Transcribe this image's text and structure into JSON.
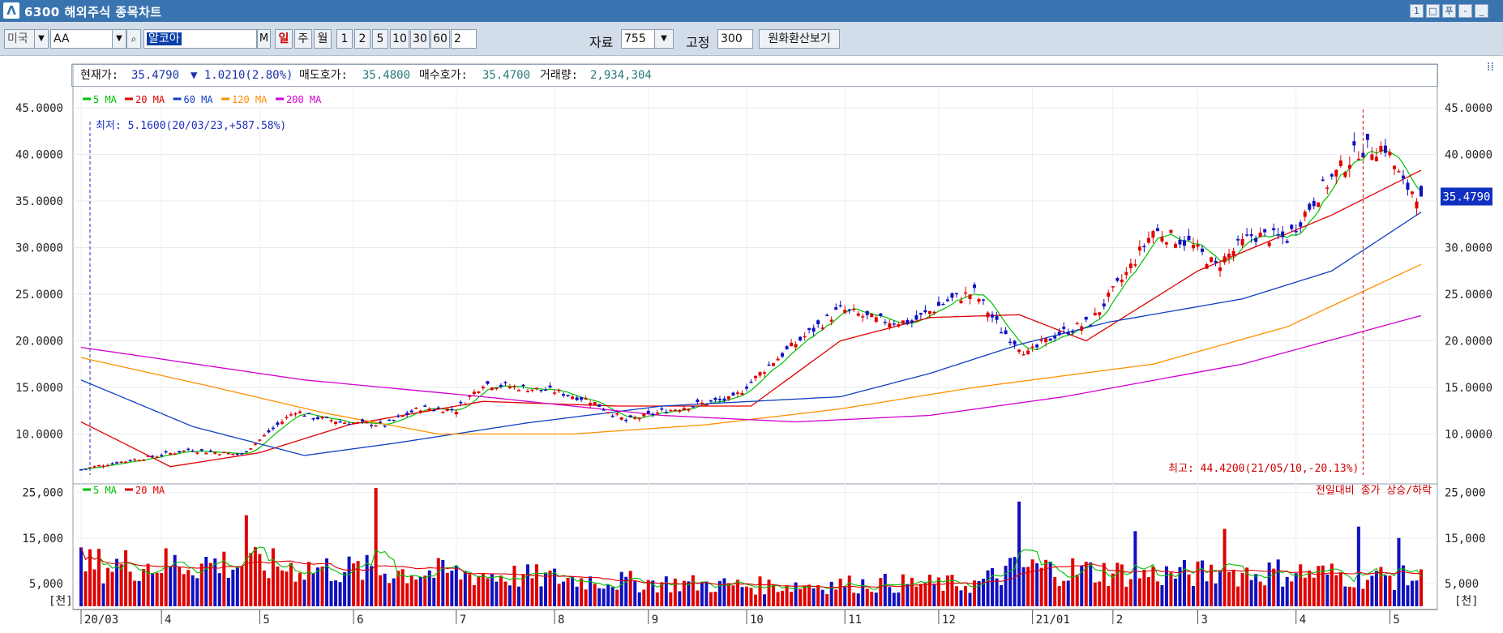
{
  "window": {
    "title": "6300 해외주식 종목차트",
    "buttons": [
      "1",
      "□",
      "푸",
      "-",
      "_"
    ]
  },
  "toolbar": {
    "market": "미국",
    "ticker": "AA",
    "name": "알코아",
    "m_label": "M",
    "periods": [
      "일",
      "주",
      "월",
      "1",
      "2",
      "5",
      "10",
      "30",
      "60"
    ],
    "period_value": "2",
    "data_label": "자료",
    "data_value": "755",
    "fixed_label": "고정",
    "fixed_value": "300",
    "fx_button": "원화환산보기"
  },
  "info": {
    "price_label": "현재가:",
    "price": "35.4790",
    "change": "▼ 1.0210(2.80%)",
    "ask_label": "매도호가:",
    "ask": "35.4800",
    "bid_label": "매수호가:",
    "bid": "35.4700",
    "volume_label": "거래량:",
    "volume": "2,934,304"
  },
  "chart_data": [
    {
      "type": "candlestick",
      "title": "",
      "ylim": [
        5,
        47
      ],
      "yticks": [
        "45.0000",
        "40.0000",
        "35.0000",
        "30.0000",
        "25.0000",
        "20.0000",
        "15.0000",
        "10.0000"
      ],
      "xticks": [
        "20/03",
        "4",
        "5",
        "6",
        "7",
        "8",
        "9",
        "10",
        "11",
        "12",
        "21/01",
        "2",
        "3",
        "4",
        "5"
      ],
      "legend": [
        "5 MA",
        "20 MA",
        "60 MA",
        "120 MA",
        "200 MA"
      ],
      "legend_colors": [
        "#00c000",
        "#e00000",
        "#1040c0",
        "#ff9000",
        "#d000d0"
      ],
      "current_price_tag": "35.4790",
      "low_annotation": "최저: 5.1600(20/03/23,+587.58%)",
      "high_annotation": "최고: 44.4200(21/05/10,-20.13%)",
      "close_keypoints": [
        [
          0,
          6.2
        ],
        [
          6,
          6.8
        ],
        [
          14,
          7.4
        ],
        [
          24,
          8.3
        ],
        [
          36,
          7.8
        ],
        [
          42,
          10.2
        ],
        [
          48,
          12.5
        ],
        [
          52,
          11.8
        ],
        [
          60,
          11.2
        ],
        [
          68,
          11.0
        ],
        [
          76,
          12.8
        ],
        [
          84,
          12.6
        ],
        [
          90,
          15.4
        ],
        [
          98,
          15.0
        ],
        [
          106,
          14.6
        ],
        [
          114,
          13.6
        ],
        [
          122,
          11.4
        ],
        [
          130,
          12.4
        ],
        [
          138,
          13.2
        ],
        [
          146,
          13.8
        ],
        [
          154,
          17.4
        ],
        [
          162,
          20.5
        ],
        [
          170,
          23.4
        ],
        [
          178,
          22.2
        ],
        [
          186,
          22.0
        ],
        [
          194,
          24.3
        ],
        [
          200,
          25.2
        ],
        [
          206,
          21.2
        ],
        [
          212,
          18.6
        ],
        [
          218,
          20.6
        ],
        [
          226,
          22.0
        ],
        [
          234,
          27.2
        ],
        [
          240,
          31.8
        ],
        [
          248,
          30.5
        ],
        [
          254,
          28.0
        ],
        [
          262,
          31.3
        ],
        [
          270,
          31.0
        ],
        [
          278,
          36.4
        ],
        [
          286,
          40.5
        ],
        [
          292,
          40.8
        ],
        [
          296,
          36.8
        ],
        [
          300,
          35.48
        ]
      ],
      "ma_keypoints": {
        "20 MA": [
          [
            0,
            11.3
          ],
          [
            20,
            6.5
          ],
          [
            40,
            8.0
          ],
          [
            60,
            11.0
          ],
          [
            90,
            13.5
          ],
          [
            120,
            13.0
          ],
          [
            150,
            13.0
          ],
          [
            170,
            20.0
          ],
          [
            190,
            22.5
          ],
          [
            210,
            22.8
          ],
          [
            225,
            20.0
          ],
          [
            250,
            27.5
          ],
          [
            280,
            33.5
          ],
          [
            300,
            38.3
          ]
        ],
        "60 MA": [
          [
            0,
            15.8
          ],
          [
            25,
            10.8
          ],
          [
            50,
            7.7
          ],
          [
            70,
            9.0
          ],
          [
            100,
            11.2
          ],
          [
            130,
            13.0
          ],
          [
            150,
            13.5
          ],
          [
            170,
            14.0
          ],
          [
            190,
            16.5
          ],
          [
            210,
            19.6
          ],
          [
            230,
            22.0
          ],
          [
            260,
            24.5
          ],
          [
            280,
            27.5
          ],
          [
            300,
            33.8
          ]
        ],
        "120 MA": [
          [
            0,
            18.2
          ],
          [
            30,
            15.0
          ],
          [
            55,
            12.2
          ],
          [
            80,
            10.0
          ],
          [
            110,
            10.0
          ],
          [
            140,
            11.0
          ],
          [
            170,
            12.7
          ],
          [
            200,
            15.0
          ],
          [
            240,
            17.5
          ],
          [
            270,
            21.5
          ],
          [
            300,
            28.2
          ]
        ],
        "200 MA": [
          [
            0,
            19.3
          ],
          [
            50,
            15.8
          ],
          [
            90,
            14.0
          ],
          [
            130,
            12.0
          ],
          [
            160,
            11.3
          ],
          [
            190,
            12.0
          ],
          [
            220,
            14.0
          ],
          [
            260,
            17.5
          ],
          [
            300,
            22.7
          ]
        ]
      }
    },
    {
      "type": "bar",
      "title": "",
      "ylim": [
        0,
        26000
      ],
      "yticks": [
        "25,000",
        "15,000",
        "5,000"
      ],
      "unit_label": "[천]",
      "legend": [
        "5 MA",
        "20 MA"
      ],
      "legend_colors": [
        "#00c000",
        "#e00000"
      ],
      "note": "전일대비 종가 상승/하락",
      "volume_keypoints": [
        [
          0,
          9000
        ],
        [
          30,
          9500
        ],
        [
          60,
          8000
        ],
        [
          90,
          7000
        ],
        [
          120,
          5500
        ],
        [
          150,
          4500
        ],
        [
          180,
          5000
        ],
        [
          200,
          4800
        ],
        [
          210,
          8500
        ],
        [
          240,
          7000
        ],
        [
          270,
          7500
        ],
        [
          300,
          6000
        ]
      ],
      "spikes": [
        [
          66,
          26000
        ],
        [
          37,
          20000
        ],
        [
          210,
          23000
        ],
        [
          286,
          17500
        ],
        [
          256,
          17000
        ],
        [
          236,
          16500
        ],
        [
          295,
          15000
        ]
      ]
    }
  ]
}
